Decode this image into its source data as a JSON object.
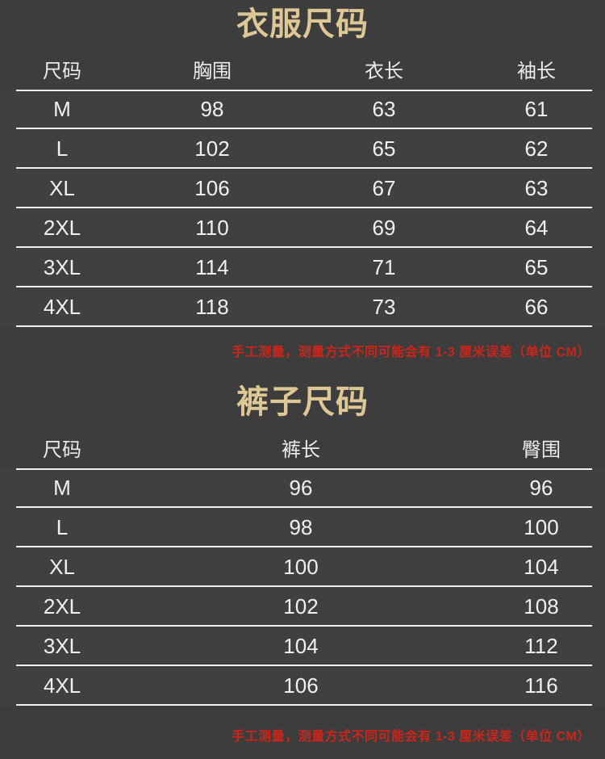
{
  "colors": {
    "background": "#3d3d3d",
    "title_gold": "#dcc795",
    "table_text": "#f0f0f0",
    "divider": "#f2f2f2",
    "warning_red": "#cb251b"
  },
  "chart_data": [
    {
      "type": "table",
      "title": "衣服尺码",
      "columns": [
        "尺码",
        "胸围",
        "衣长",
        "袖长"
      ],
      "rows": [
        [
          "M",
          98,
          63,
          61
        ],
        [
          "L",
          102,
          65,
          62
        ],
        [
          "XL",
          106,
          67,
          63
        ],
        [
          "2XL",
          110,
          69,
          64
        ],
        [
          "3XL",
          114,
          71,
          65
        ],
        [
          "4XL",
          118,
          73,
          66
        ]
      ],
      "note": "手工测量，测量方式不同可能会有 1-3 厘米误差（单位 CM）"
    },
    {
      "type": "table",
      "title": "裤子尺码",
      "columns": [
        "尺码",
        "裤长",
        "臀围"
      ],
      "rows": [
        [
          "M",
          96,
          96
        ],
        [
          "L",
          98,
          100
        ],
        [
          "XL",
          100,
          104
        ],
        [
          "2XL",
          102,
          108
        ],
        [
          "3XL",
          104,
          112
        ],
        [
          "4XL",
          106,
          116
        ]
      ],
      "note": "手工测量，测量方式不同可能会有 1-3 厘米误差（单位 CM）"
    }
  ]
}
